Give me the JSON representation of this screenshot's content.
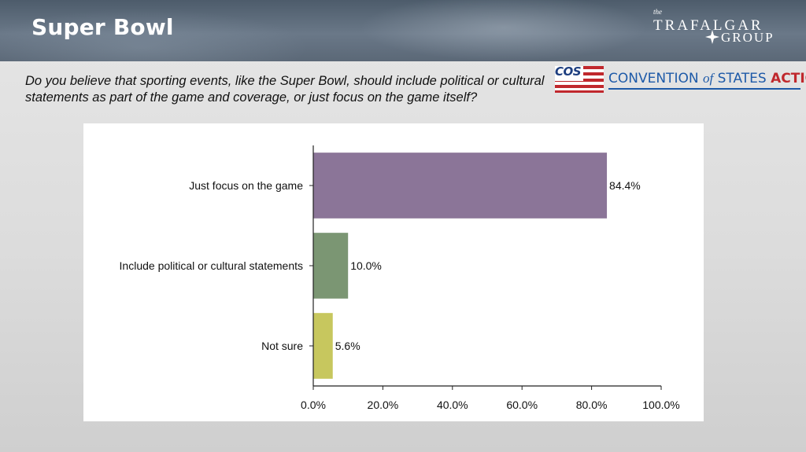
{
  "header": {
    "title": "Super Bowl",
    "brand": {
      "small": "the",
      "line1": "TRAFALGAR",
      "line2": "GROUP"
    }
  },
  "question": "Do you believe that sporting events, like the Super Bowl, should include political or cultural statements as part of the game and coverage, or just focus on the game itself?",
  "cos_logo": {
    "abbr": "COS",
    "name_part1": "CONVENTION ",
    "name_of": "of",
    "name_part2": " STATES ",
    "name_action": "ACTION"
  },
  "colors": {
    "bar_focus": "#8b7598",
    "bar_political": "#7b9673",
    "bar_not_sure": "#c7c75e",
    "cos_blue": "#1e5aa8",
    "cos_red": "#c0282d"
  },
  "chart_data": {
    "type": "bar",
    "orientation": "horizontal",
    "categories": [
      "Just focus on the game",
      "Include political or cultural statements",
      "Not sure"
    ],
    "values": [
      84.4,
      10.0,
      5.6
    ],
    "value_labels": [
      "84.4%",
      "10.0%",
      "5.6%"
    ],
    "bar_colors": [
      "#8b7598",
      "#7b9673",
      "#c7c75e"
    ],
    "xlim": [
      0,
      100
    ],
    "xticks": [
      0,
      20,
      40,
      60,
      80,
      100
    ],
    "xtick_labels": [
      "0.0%",
      "20.0%",
      "40.0%",
      "60.0%",
      "80.0%",
      "100.0%"
    ],
    "grid": false,
    "title": "",
    "xlabel": "",
    "ylabel": ""
  }
}
